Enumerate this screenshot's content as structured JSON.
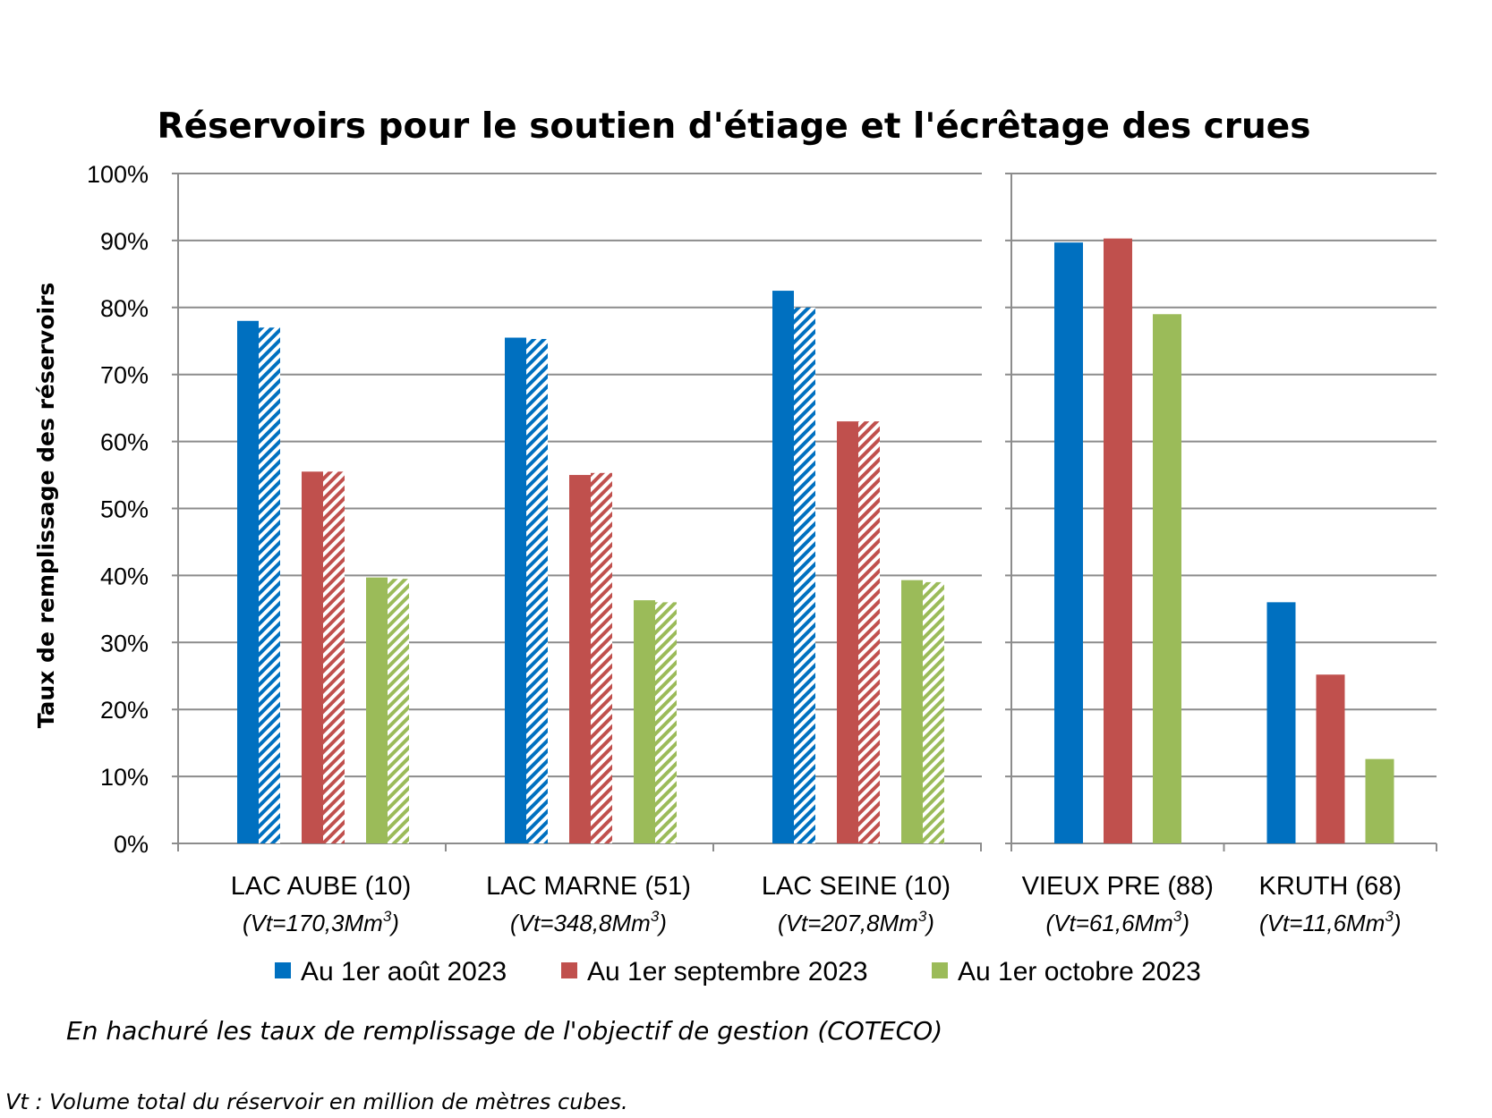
{
  "chart_data": {
    "type": "bar",
    "title": "Réservoirs pour le soutien d'étiage et l'écrêtage des crues",
    "ylabel": "Taux de remplissage des réservoirs",
    "ylim": [
      0,
      100
    ],
    "yticks": [
      "0%",
      "10%",
      "20%",
      "30%",
      "40%",
      "50%",
      "60%",
      "70%",
      "80%",
      "90%",
      "100%"
    ],
    "grid": true,
    "legend_position": "bottom",
    "panels": [
      {
        "categories": [
          {
            "name": "LAC AUBE (10)",
            "volume": "(Vt=170,3Mm",
            "volume_sup": "3",
            "volume_end": ")"
          },
          {
            "name": "LAC MARNE (51)",
            "volume": "(Vt=348,8Mm",
            "volume_sup": "3",
            "volume_end": ")"
          },
          {
            "name": "LAC SEINE (10)",
            "volume": "(Vt=207,8Mm",
            "volume_sup": "3",
            "volume_end": ")"
          }
        ],
        "series": [
          {
            "name": "Au 1er août 2023",
            "color": "#0070c0",
            "values": [
              78,
              75.5,
              82.5
            ],
            "target_values": [
              77,
              75.3,
              80
            ]
          },
          {
            "name": "Au 1er septembre 2023",
            "color": "#c0504d",
            "values": [
              55.5,
              55,
              63
            ],
            "target_values": [
              55.5,
              55.3,
              63
            ]
          },
          {
            "name": "Au 1er octobre 2023",
            "color": "#9bbb59",
            "values": [
              39.7,
              36.3,
              39.3
            ],
            "target_values": [
              39.5,
              36,
              39
            ]
          }
        ]
      },
      {
        "categories": [
          {
            "name": "VIEUX PRE (88)",
            "volume": "(Vt=61,6Mm",
            "volume_sup": "3",
            "volume_end": ")"
          },
          {
            "name": "KRUTH (68)",
            "volume": "(Vt=11,6Mm",
            "volume_sup": "3",
            "volume_end": ")"
          }
        ],
        "series": [
          {
            "name": "Au 1er août 2023",
            "color": "#0070c0",
            "values": [
              89.7,
              36
            ]
          },
          {
            "name": "Au 1er septembre 2023",
            "color": "#c0504d",
            "values": [
              90.3,
              25.2
            ]
          },
          {
            "name": "Au 1er octobre 2023",
            "color": "#9bbb59",
            "values": [
              79,
              12.6
            ]
          }
        ]
      }
    ],
    "legend": [
      {
        "label": "Au 1er août 2023",
        "color": "#0070c0"
      },
      {
        "label": "Au 1er septembre 2023",
        "color": "#c0504d"
      },
      {
        "label": "Au 1er octobre 2023",
        "color": "#9bbb59"
      }
    ],
    "annotations": [
      "En hachuré les taux de remplissage de l'objectif de gestion (COTECO)",
      "Vt : Volume total du réservoir en million de mètres cubes."
    ]
  }
}
